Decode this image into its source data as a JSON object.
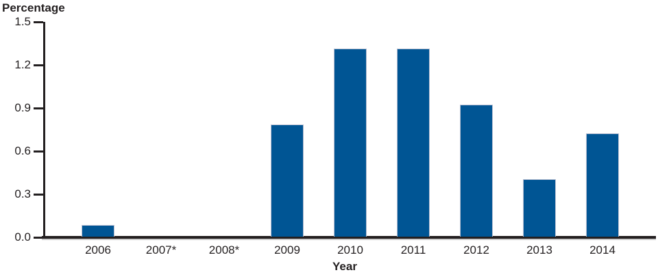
{
  "chart_data": {
    "type": "bar",
    "title": "",
    "ylabel": "Percentage",
    "xlabel": "Year",
    "categories": [
      "2006",
      "2007*",
      "2008*",
      "2009",
      "2010",
      "2011",
      "2012",
      "2013",
      "2014"
    ],
    "values": [
      0.08,
      null,
      null,
      0.78,
      1.31,
      1.31,
      0.92,
      0.4,
      0.72
    ],
    "y_ticks": [
      "0.0",
      "0.3",
      "0.6",
      "0.9",
      "1.2",
      "1.5"
    ],
    "ylim": [
      0,
      1.5
    ],
    "grid": false,
    "legend": "none",
    "colors": {
      "bar_fill": "#005594",
      "bar_edge": "#b9bfd2",
      "axis": "#231f20",
      "text": "#231f20",
      "axis_shadow": "#c9c9c9"
    }
  }
}
